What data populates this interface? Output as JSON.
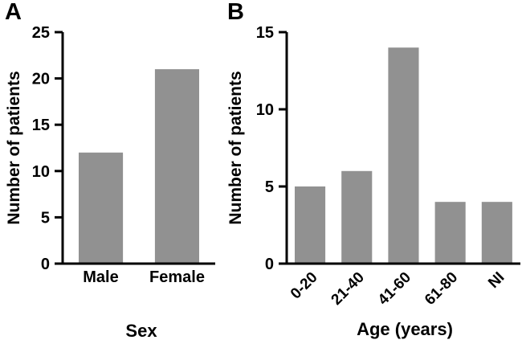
{
  "figure": {
    "background": "#ffffff",
    "bar_color": "#919191",
    "axis_color": "#000000",
    "text_color": "#000000"
  },
  "chart_data": [
    {
      "type": "bar",
      "panel_label": "A",
      "categories": [
        "Male",
        "Female"
      ],
      "values": [
        12,
        21
      ],
      "title": "",
      "xlabel": "Sex",
      "ylabel": "Number of patients",
      "ylim": [
        0,
        25
      ],
      "yticks": [
        0,
        5,
        10,
        15,
        20,
        25
      ],
      "grid": false,
      "legend": "none",
      "category_rotation_deg": 0
    },
    {
      "type": "bar",
      "panel_label": "B",
      "categories": [
        "0-20",
        "21-40",
        "41-60",
        "61-80",
        "NI"
      ],
      "values": [
        5,
        6,
        14,
        4,
        4
      ],
      "title": "",
      "xlabel": "Age (years)",
      "ylabel": "Number of patients",
      "ylim": [
        0,
        15
      ],
      "yticks": [
        0,
        5,
        10,
        15
      ],
      "grid": false,
      "legend": "none",
      "category_rotation_deg": -45
    }
  ]
}
